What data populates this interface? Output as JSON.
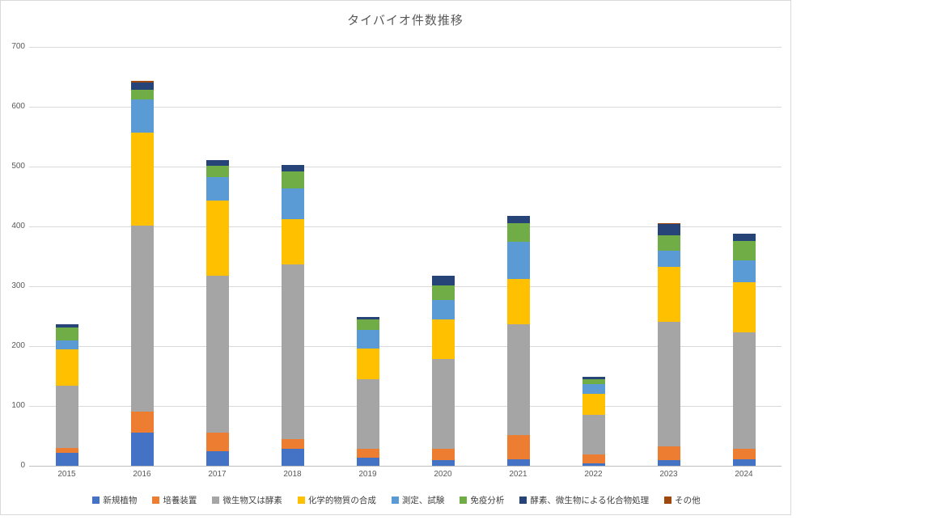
{
  "chart_data": {
    "type": "bar",
    "stacked": true,
    "title": "タイバイオ件数推移",
    "xlabel": "",
    "ylabel": "",
    "ylim": [
      0,
      700
    ],
    "yticks": [
      0,
      100,
      200,
      300,
      400,
      500,
      600,
      700
    ],
    "grid": true,
    "legend_position": "bottom",
    "categories": [
      "2015",
      "2016",
      "2017",
      "2018",
      "2019",
      "2020",
      "2021",
      "2022",
      "2023",
      "2024"
    ],
    "series": [
      {
        "name": "新規植物",
        "color": "#4472C4",
        "values": [
          22,
          55,
          25,
          28,
          13,
          9,
          11,
          4,
          10,
          11
        ]
      },
      {
        "name": "培養装置",
        "color": "#ED7D31",
        "values": [
          8,
          35,
          30,
          17,
          16,
          20,
          41,
          15,
          23,
          17
        ]
      },
      {
        "name": "微生物又は酵素",
        "color": "#A5A5A5",
        "values": [
          104,
          312,
          262,
          292,
          116,
          150,
          185,
          66,
          208,
          195
        ]
      },
      {
        "name": "化学的物質の合成",
        "color": "#FFC000",
        "values": [
          61,
          155,
          126,
          75,
          51,
          65,
          75,
          35,
          91,
          84
        ]
      },
      {
        "name": "測定、試験",
        "color": "#5B9BD5",
        "values": [
          15,
          55,
          40,
          52,
          31,
          33,
          62,
          16,
          27,
          36
        ]
      },
      {
        "name": "免疫分析",
        "color": "#70AD47",
        "values": [
          21,
          16,
          18,
          28,
          17,
          24,
          31,
          9,
          26,
          33
        ]
      },
      {
        "name": "酵素、微生物による化合物処理",
        "color": "#264478",
        "values": [
          5,
          13,
          10,
          11,
          5,
          16,
          13,
          4,
          19,
          12
        ]
      },
      {
        "name": "その他",
        "color": "#9E480E",
        "values": [
          0,
          2,
          0,
          0,
          0,
          0,
          0,
          0,
          2,
          0
        ]
      }
    ],
    "totals": [
      236,
      643,
      511,
      503,
      249,
      317,
      418,
      149,
      406,
      388
    ]
  }
}
